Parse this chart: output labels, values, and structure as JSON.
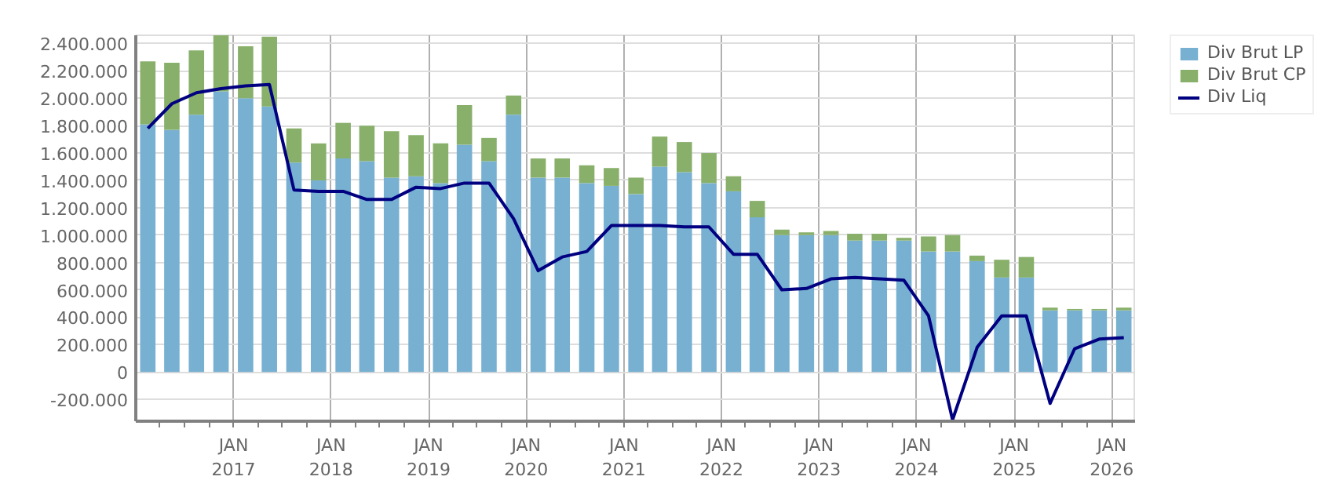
{
  "chart_data": {
    "type": "bar",
    "stacked": true,
    "x": [
      "2016-02-15",
      "2016-05-15",
      "2016-08-15",
      "2016-11-15",
      "2017-02-15",
      "2017-05-15",
      "2017-08-15",
      "2017-11-15",
      "2018-02-15",
      "2018-05-15",
      "2018-08-15",
      "2018-11-15",
      "2019-02-15",
      "2019-05-15",
      "2019-08-15",
      "2019-11-15",
      "2020-02-15",
      "2020-05-15",
      "2020-08-15",
      "2020-11-15",
      "2021-02-15",
      "2021-05-15",
      "2021-08-15",
      "2021-11-15",
      "2022-02-15",
      "2022-05-15",
      "2022-08-15",
      "2022-11-15",
      "2023-02-15",
      "2023-05-15",
      "2023-08-15",
      "2023-11-15",
      "2024-02-15",
      "2024-05-15",
      "2024-08-15",
      "2024-11-15",
      "2025-02-15",
      "2025-05-15",
      "2025-08-15",
      "2025-11-15",
      "2026-02-15"
    ],
    "series": [
      {
        "name": "Div Brut LP",
        "color": "#77b0d1",
        "values": [
          1810000,
          1770000,
          1880000,
          2050000,
          2000000,
          1940000,
          1530000,
          1400000,
          1560000,
          1540000,
          1420000,
          1430000,
          1380000,
          1660000,
          1540000,
          1880000,
          1420000,
          1420000,
          1380000,
          1360000,
          1300000,
          1500000,
          1460000,
          1380000,
          1320000,
          1130000,
          1000000,
          1000000,
          1000000,
          960000,
          960000,
          960000,
          880000,
          880000,
          810000,
          690000,
          690000,
          450000,
          450000,
          450000,
          450000
        ]
      },
      {
        "name": "Div Brut CP",
        "color": "#88b06a",
        "values": [
          460000,
          490000,
          470000,
          410000,
          380000,
          510000,
          250000,
          270000,
          260000,
          260000,
          340000,
          300000,
          290000,
          290000,
          170000,
          140000,
          140000,
          140000,
          130000,
          130000,
          120000,
          220000,
          220000,
          220000,
          110000,
          120000,
          40000,
          20000,
          30000,
          50000,
          50000,
          20000,
          110000,
          120000,
          40000,
          130000,
          150000,
          20000,
          10000,
          10000,
          20000
        ]
      },
      {
        "name": "Div Liq",
        "color": "#000080",
        "type": "line",
        "values": [
          1780000,
          1960000,
          2040000,
          2070000,
          2090000,
          2100000,
          1330000,
          1320000,
          1320000,
          1260000,
          1260000,
          1350000,
          1340000,
          1380000,
          1380000,
          1120000,
          740000,
          840000,
          880000,
          1070000,
          1070000,
          1070000,
          1060000,
          1060000,
          860000,
          860000,
          600000,
          610000,
          680000,
          690000,
          680000,
          670000,
          410000,
          -350000,
          180000,
          410000,
          410000,
          -230000,
          170000,
          240000,
          250000
        ]
      }
    ],
    "xlim": [
      "2016-01-01",
      "2026-04-01"
    ],
    "xticks": [
      {
        "value": "2016-04-01",
        "label": null
      },
      {
        "value": "2016-07-01",
        "label": null
      },
      {
        "value": "2016-10-01",
        "label": null
      },
      {
        "value": "2017-01-01",
        "label": "JAN\n2017"
      },
      {
        "value": "2017-04-01",
        "label": null
      },
      {
        "value": "2017-07-01",
        "label": null
      },
      {
        "value": "2017-10-01",
        "label": null
      },
      {
        "value": "2018-01-01",
        "label": "JAN\n2018"
      },
      {
        "value": "2018-04-01",
        "label": null
      },
      {
        "value": "2018-07-01",
        "label": null
      },
      {
        "value": "2018-10-01",
        "label": null
      },
      {
        "value": "2019-01-01",
        "label": "JAN\n2019"
      },
      {
        "value": "2019-04-01",
        "label": null
      },
      {
        "value": "2019-07-01",
        "label": null
      },
      {
        "value": "2019-10-01",
        "label": null
      },
      {
        "value": "2020-01-01",
        "label": "JAN\n2020"
      },
      {
        "value": "2020-04-01",
        "label": null
      },
      {
        "value": "2020-07-01",
        "label": null
      },
      {
        "value": "2020-10-01",
        "label": null
      },
      {
        "value": "2021-01-01",
        "label": "JAN\n2021"
      },
      {
        "value": "2021-04-01",
        "label": null
      },
      {
        "value": "2021-07-01",
        "label": null
      },
      {
        "value": "2021-10-01",
        "label": null
      },
      {
        "value": "2022-01-01",
        "label": "JAN\n2022"
      },
      {
        "value": "2022-04-01",
        "label": null
      },
      {
        "value": "2022-07-01",
        "label": null
      },
      {
        "value": "2022-10-01",
        "label": null
      },
      {
        "value": "2023-01-01",
        "label": "JAN\n2023"
      },
      {
        "value": "2023-04-01",
        "label": null
      },
      {
        "value": "2023-07-01",
        "label": null
      },
      {
        "value": "2023-10-01",
        "label": null
      },
      {
        "value": "2024-01-01",
        "label": "JAN\n2024"
      },
      {
        "value": "2024-04-01",
        "label": null
      },
      {
        "value": "2024-07-01",
        "label": null
      },
      {
        "value": "2024-10-01",
        "label": null
      },
      {
        "value": "2025-01-01",
        "label": "JAN\n2025"
      },
      {
        "value": "2025-04-01",
        "label": null
      },
      {
        "value": "2025-07-01",
        "label": null
      },
      {
        "value": "2025-10-01",
        "label": null
      },
      {
        "value": "2026-01-01",
        "label": "JAN\n2026"
      }
    ],
    "ylim": [
      -360000,
      2460000
    ],
    "yticks": [
      {
        "value": -200000,
        "label": "-200.000"
      },
      0,
      {
        "value": 200000,
        "label": "200.000"
      },
      {
        "value": 400000,
        "label": "400.000"
      },
      {
        "value": 600000,
        "label": "600.000"
      },
      {
        "value": 800000,
        "label": "800.000"
      },
      {
        "value": 1000000,
        "label": "1.000.000"
      },
      {
        "value": 1200000,
        "label": "1.200.000"
      },
      {
        "value": 1400000,
        "label": "1.400.000"
      },
      {
        "value": 1600000,
        "label": "1.600.000"
      },
      {
        "value": 1800000,
        "label": "1.800.000"
      },
      {
        "value": 2000000,
        "label": "2.000.000"
      },
      {
        "value": 2200000,
        "label": "2.200.000"
      },
      {
        "value": 2400000,
        "label": "2.400.000"
      }
    ],
    "grid": true,
    "legend": "top right"
  }
}
